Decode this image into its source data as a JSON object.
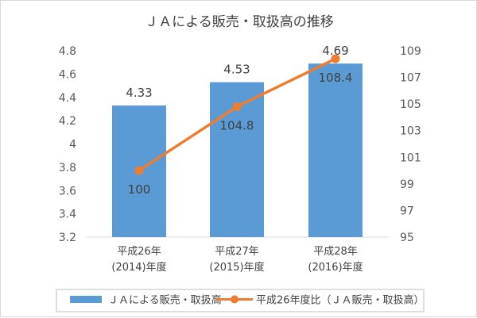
{
  "chart_data": {
    "type": "bar",
    "title": "ＪＡによる販売・取扱高の推移",
    "categories": [
      {
        "line1": "平成26年",
        "line2": "(2014)年度"
      },
      {
        "line1": "平成27年",
        "line2": "(2015)年度"
      },
      {
        "line1": "平成28年",
        "line2": "(2016)年度"
      }
    ],
    "series": [
      {
        "name": "ＪＡによる販売・取扱高",
        "type": "bar",
        "axis": "left",
        "values": [
          4.33,
          4.53,
          4.69
        ],
        "labels": [
          "4.33",
          "4.53",
          "4.69"
        ],
        "color": "#5b9bd5"
      },
      {
        "name": "平成26年度比（ＪＡ販売・取扱高）",
        "type": "line",
        "axis": "right",
        "values": [
          100,
          104.8,
          108.4
        ],
        "labels": [
          "100",
          "104.8",
          "108.4"
        ],
        "color": "#ed7d31"
      }
    ],
    "y_left": {
      "min": 3.2,
      "max": 4.8,
      "ticks": [
        "3.2",
        "3.4",
        "3.6",
        "3.8",
        "4",
        "4.2",
        "4.4",
        "4.6",
        "4.8"
      ]
    },
    "y_right": {
      "min": 95,
      "max": 109,
      "ticks": [
        "95",
        "97",
        "99",
        "101",
        "103",
        "105",
        "107",
        "109"
      ]
    },
    "grid": false,
    "legend": "bottom"
  }
}
